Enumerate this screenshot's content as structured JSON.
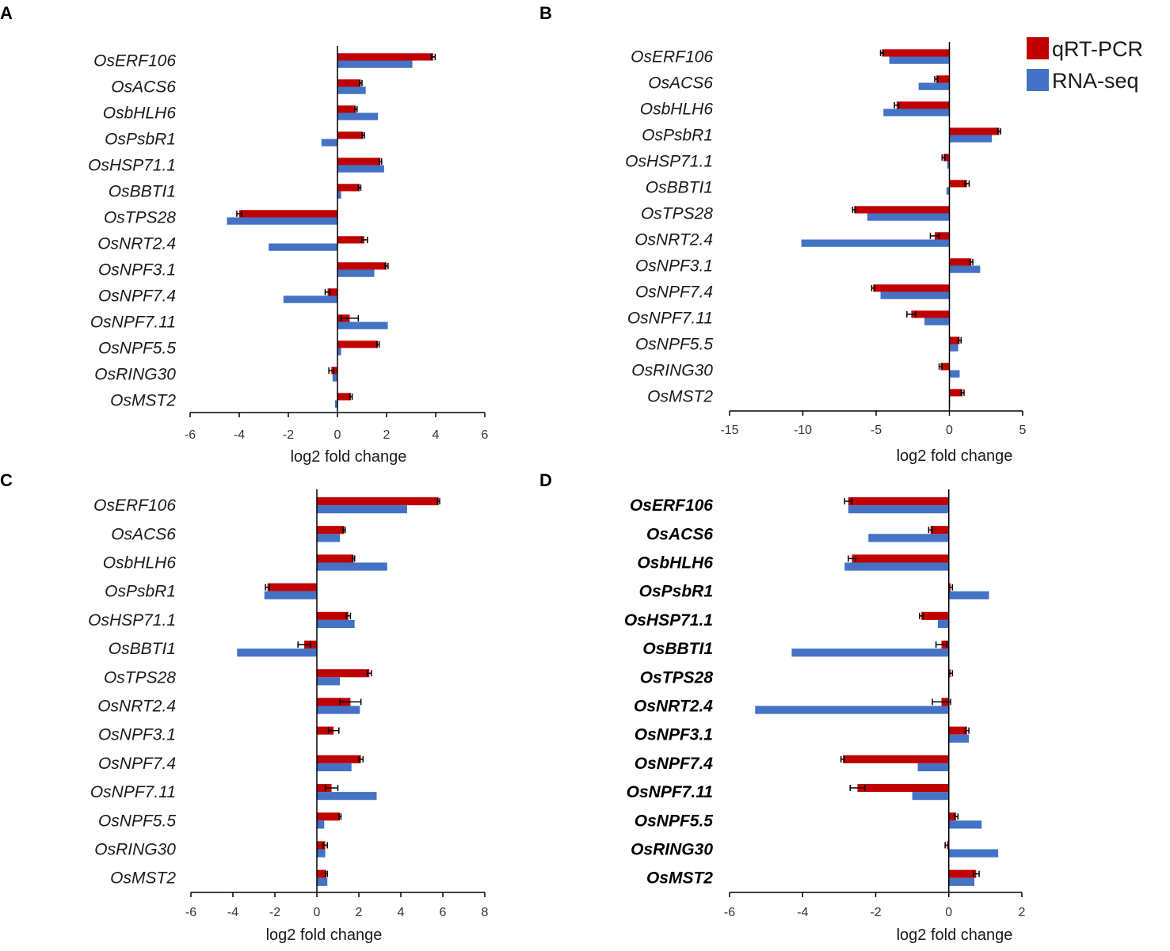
{
  "colors": {
    "qrt": "#c00000",
    "rna": "#4472c4",
    "axis": "#000000",
    "errorbar": "#000000"
  },
  "legend": {
    "items": [
      "qRT-PCR",
      "RNA-seq"
    ],
    "placement": "top-right"
  },
  "chart_data": [
    {
      "panel": "A",
      "type": "bar",
      "orientation": "horizontal",
      "xlabel": "log2 fold change",
      "xlim": [
        -6,
        6
      ],
      "xticks": [
        "-6",
        "-4",
        "-2",
        "0",
        "2",
        "4",
        "6"
      ],
      "xtick_values": [
        -6,
        -4,
        -2,
        0,
        2,
        4,
        6
      ],
      "bold_labels": false,
      "categories": [
        "OsERF106",
        "OsACS6",
        "OsbHLH6",
        "OsPsbR1",
        "OsHSP71.1",
        "OsBBTI1",
        "OsTPS28",
        "OsNRT2.4",
        "OsNPF3.1",
        "OsNPF7.4",
        "OsNPF7.11",
        "OsNPF5.5",
        "OsRING30",
        "OsMST2"
      ],
      "series": [
        {
          "name": "qRT-PCR",
          "values": [
            3.9,
            0.95,
            0.75,
            1.05,
            1.75,
            0.9,
            -4.0,
            1.1,
            2.0,
            -0.4,
            0.5,
            1.65,
            -0.25,
            0.55
          ],
          "errors": [
            0.08,
            0.05,
            0.05,
            0.05,
            0.05,
            0.05,
            0.1,
            0.12,
            0.06,
            0.1,
            0.35,
            0.05,
            0.1,
            0.05
          ]
        },
        {
          "name": "RNA-seq",
          "values": [
            3.05,
            1.15,
            1.65,
            -0.65,
            1.9,
            0.15,
            -4.5,
            -2.8,
            1.5,
            -2.2,
            2.05,
            0.15,
            -0.2,
            -0.1
          ]
        }
      ]
    },
    {
      "panel": "B",
      "type": "bar",
      "orientation": "horizontal",
      "xlabel": "log2 fold change",
      "xlim": [
        -15,
        5
      ],
      "xticks": [
        "-15",
        "-10",
        "-5",
        "0",
        "5"
      ],
      "xtick_values": [
        -15,
        -10,
        -5,
        0,
        5
      ],
      "bold_labels": false,
      "categories": [
        "OsERF106",
        "OsACS6",
        "OsbHLH6",
        "OsPsbR1",
        "OsHSP71.1",
        "OsBBTI1",
        "OsTPS28",
        "OsNRT2.4",
        "OsNPF3.1",
        "OsNPF7.4",
        "OsNPF7.11",
        "OsNPF5.5",
        "OsRING30",
        "OsMST2"
      ],
      "series": [
        {
          "name": "qRT-PCR",
          "values": [
            -4.6,
            -0.9,
            -3.6,
            3.4,
            -0.4,
            1.2,
            -6.5,
            -1.0,
            1.5,
            -5.2,
            -2.6,
            0.7,
            -0.6,
            0.9
          ],
          "errors": [
            0.1,
            0.1,
            0.15,
            0.1,
            0.1,
            0.15,
            0.1,
            0.3,
            0.1,
            0.1,
            0.3,
            0.1,
            0.1,
            0.1
          ]
        },
        {
          "name": "RNA-seq",
          "values": [
            -4.1,
            -2.1,
            -4.5,
            2.9,
            -0.15,
            -0.2,
            -5.6,
            -10.1,
            2.1,
            -4.7,
            -1.7,
            0.6,
            0.7,
            0.05
          ]
        }
      ]
    },
    {
      "panel": "C",
      "type": "bar",
      "orientation": "horizontal",
      "xlabel": "log2 fold change",
      "xlim": [
        -6,
        8
      ],
      "xticks": [
        "-6",
        "-4",
        "-2",
        "0",
        "2",
        "4",
        "6",
        "8"
      ],
      "xtick_values": [
        -6,
        -4,
        -2,
        0,
        2,
        4,
        6,
        8
      ],
      "bold_labels": false,
      "categories": [
        "OsERF106",
        "OsACS6",
        "OsbHLH6",
        "OsPsbR1",
        "OsHSP71.1",
        "OsBBTI1",
        "OsTPS28",
        "OsNRT2.4",
        "OsNPF3.1",
        "OsNPF7.4",
        "OsNPF7.11",
        "OsNPF5.5",
        "OsRING30",
        "OsMST2"
      ],
      "series": [
        {
          "name": "qRT-PCR",
          "values": [
            5.8,
            1.3,
            1.75,
            -2.35,
            1.5,
            -0.6,
            2.5,
            1.6,
            0.8,
            2.1,
            0.7,
            1.1,
            0.4,
            0.45
          ],
          "errors": [
            0.05,
            0.05,
            0.05,
            0.1,
            0.1,
            0.3,
            0.1,
            0.5,
            0.25,
            0.1,
            0.3,
            0.05,
            0.1,
            0.05
          ]
        },
        {
          "name": "RNA-seq",
          "values": [
            4.3,
            1.1,
            3.35,
            -2.5,
            1.8,
            -3.8,
            1.1,
            2.05,
            0.0,
            1.65,
            2.85,
            0.35,
            0.4,
            0.5
          ]
        }
      ]
    },
    {
      "panel": "D",
      "type": "bar",
      "orientation": "horizontal",
      "xlabel": "log2 fold change",
      "xlim": [
        -6,
        2
      ],
      "xticks": [
        "-6",
        "-4",
        "-2",
        "0",
        "2"
      ],
      "xtick_values": [
        -6,
        -4,
        -2,
        0,
        2
      ],
      "bold_labels": true,
      "categories": [
        "OsERF106",
        "OsACS6",
        "OsbHLH6",
        "OsPsbR1",
        "OsHSP71.1",
        "OsBBTI1",
        "OsTPS28",
        "OsNRT2.4",
        "OsNPF3.1",
        "OsNPF7.4",
        "OsNPF7.11",
        "OsNPF5.5",
        "OsRING30",
        "OsMST2"
      ],
      "series": [
        {
          "name": "qRT-PCR",
          "values": [
            -2.75,
            -0.5,
            -2.65,
            0.05,
            -0.75,
            -0.2,
            0.05,
            -0.2,
            0.5,
            -2.9,
            -2.5,
            0.2,
            -0.05,
            0.75
          ],
          "errors": [
            0.1,
            0.05,
            0.1,
            0.05,
            0.05,
            0.15,
            0.05,
            0.25,
            0.05,
            0.05,
            0.2,
            0.05,
            0.05,
            0.08
          ]
        },
        {
          "name": "RNA-seq",
          "values": [
            -2.75,
            -2.2,
            -2.85,
            1.1,
            -0.3,
            -4.3,
            0.0,
            -5.3,
            0.55,
            -0.85,
            -1.0,
            0.9,
            1.35,
            0.7
          ]
        }
      ]
    }
  ]
}
